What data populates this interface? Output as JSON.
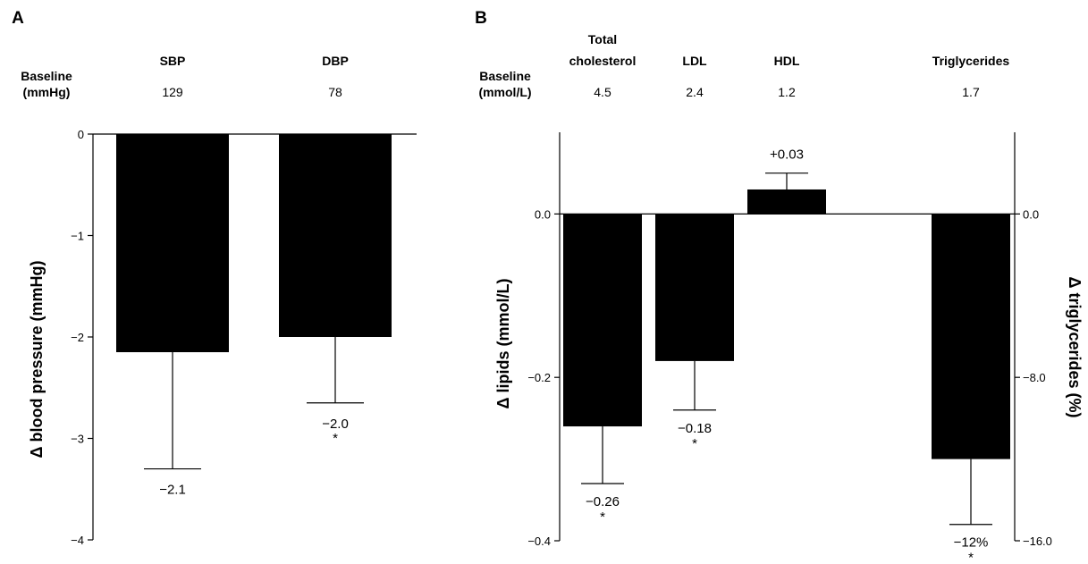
{
  "panels": {
    "a": {
      "letter": "A",
      "baseline_label": [
        "Baseline",
        "(mmHg)"
      ],
      "categories": [
        "SBP",
        "DBP"
      ],
      "baseline_values": [
        "129",
        "78"
      ]
    },
    "b": {
      "letter": "B",
      "baseline_label": [
        "Baseline",
        "(mmol/L)"
      ],
      "categories": [
        [
          "Total",
          "cholesterol"
        ],
        [
          "LDL"
        ],
        [
          "HDL"
        ],
        [
          "Triglycerides"
        ]
      ],
      "baseline_values": [
        "4.5",
        "2.4",
        "1.2",
        "1.7"
      ]
    }
  },
  "chart_data": [
    {
      "type": "bar",
      "title": "",
      "categories": [
        "SBP",
        "DBP"
      ],
      "values": [
        -2.15,
        -2.0
      ],
      "error_lower": [
        -3.3,
        -2.65
      ],
      "data_labels": [
        "−2.1",
        "−2.0"
      ],
      "significance": [
        "",
        "*"
      ],
      "xlabel": "",
      "ylabel": "Δ blood pressure (mmHg)",
      "ylim": [
        -4,
        0
      ],
      "yticks": [
        0,
        -1,
        -2,
        -3,
        -4
      ],
      "ytick_labels": [
        "0",
        "−1",
        "−2",
        "−3",
        "−4"
      ],
      "bar_color": "#000000",
      "grid": false
    },
    {
      "type": "bar",
      "title": "",
      "categories": [
        "Total cholesterol",
        "LDL",
        "HDL",
        "Triglycerides"
      ],
      "series": [
        {
          "axis": "left",
          "values": [
            -0.26,
            -0.18,
            0.03,
            null
          ],
          "error_ends": [
            -0.33,
            -0.24,
            0.05,
            null
          ]
        },
        {
          "axis": "right",
          "values": [
            null,
            null,
            null,
            -12.0
          ],
          "error_ends": [
            null,
            null,
            null,
            -15.2
          ]
        }
      ],
      "data_labels": [
        "−0.26",
        "−0.18",
        "+0.03",
        "−12%"
      ],
      "significance": [
        "*",
        "*",
        "",
        "*"
      ],
      "xlabel": "",
      "ylabel": "Δ lipids (mmol/L)",
      "ylim": [
        -0.4,
        0.1
      ],
      "yticks": [
        0.0,
        -0.2,
        -0.4
      ],
      "ytick_labels": [
        "0.0",
        "−0.2",
        "−0.4"
      ],
      "y2label": "Δ triglycerides (%)",
      "y2lim": [
        -16.0,
        4.0
      ],
      "y2ticks": [
        0.0,
        -8.0,
        -16.0
      ],
      "y2tick_labels": [
        "0.0",
        "−8.0",
        "−16.0"
      ],
      "bar_color": "#000000",
      "grid": false
    }
  ]
}
